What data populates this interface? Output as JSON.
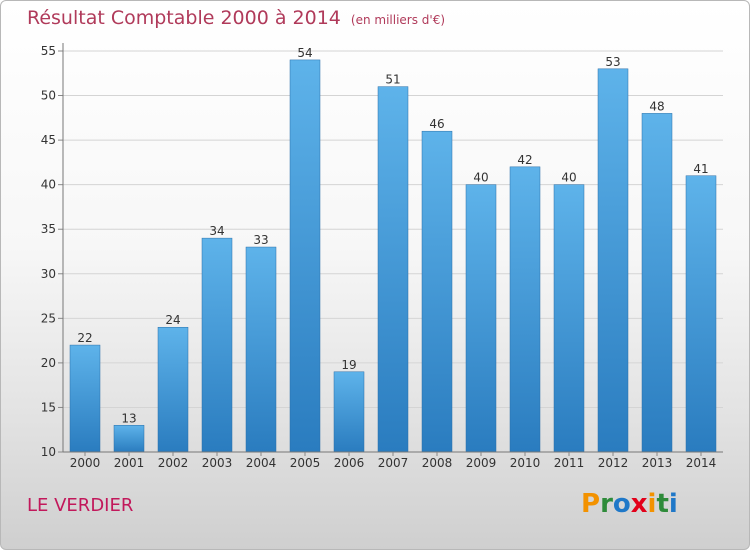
{
  "chart_data": {
    "type": "bar",
    "title": "Résultat Comptable 2000 à 2014",
    "subtitle": "(en milliers d'€)",
    "categories": [
      "2000",
      "2001",
      "2002",
      "2003",
      "2004",
      "2005",
      "2006",
      "2007",
      "2008",
      "2009",
      "2010",
      "2011",
      "2012",
      "2013",
      "2014"
    ],
    "values": [
      22,
      13,
      24,
      34,
      33,
      54,
      19,
      51,
      46,
      40,
      42,
      40,
      53,
      48,
      41
    ],
    "ylim": [
      10,
      55
    ],
    "yticks": [
      10,
      15,
      20,
      25,
      30,
      35,
      40,
      45,
      50,
      55
    ],
    "xlabel": "",
    "ylabel": "",
    "grid": "horizontal"
  },
  "footer": {
    "place_name": "LE VERDIER",
    "logo_text": "Proxiti"
  },
  "colors": {
    "bar_light": "#5aafe6",
    "bar_dark": "#2b7fc1",
    "title": "#b03a5a",
    "place": "#c2185b"
  }
}
